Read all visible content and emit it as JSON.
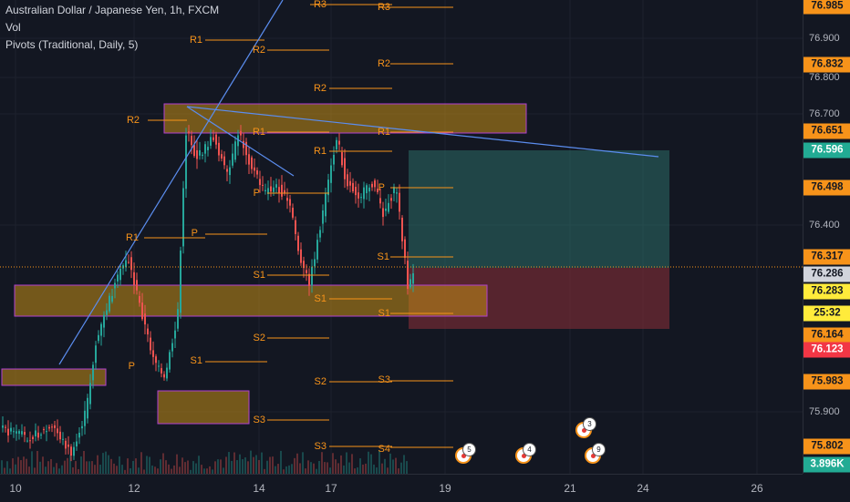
{
  "legend": {
    "symbol_line": "Australian Dollar / Japanese Yen, 1h, FXCM",
    "vol": "Vol",
    "pivots": "Pivots (Traditional, Daily, 5)"
  },
  "price_axis": {
    "labels": [
      "76.900",
      "76.800",
      "76.700",
      "76.400",
      "75.900"
    ],
    "tags": [
      {
        "text": "76.985",
        "bg": "#f7931a",
        "fg": "#131722"
      },
      {
        "text": "76.832",
        "bg": "#f7931a",
        "fg": "#131722"
      },
      {
        "text": "76.651",
        "bg": "#f7931a",
        "fg": "#131722"
      },
      {
        "text": "76.596",
        "bg": "#22ab94",
        "fg": "#ffffff"
      },
      {
        "text": "76.498",
        "bg": "#f7931a",
        "fg": "#131722"
      },
      {
        "text": "76.317",
        "bg": "#f7931a",
        "fg": "#131722"
      },
      {
        "text": "76.286",
        "bg": "#d1d4dc",
        "fg": "#131722"
      },
      {
        "text": "76.283",
        "bg": "#ffeb3b",
        "fg": "#131722"
      },
      {
        "text": "25:32",
        "bg": "#ffeb3b",
        "fg": "#131722"
      },
      {
        "text": "76.164",
        "bg": "#f7931a",
        "fg": "#131722"
      },
      {
        "text": "76.123",
        "bg": "#f23645",
        "fg": "#ffffff"
      },
      {
        "text": "75.983",
        "bg": "#f7931a",
        "fg": "#131722"
      },
      {
        "text": "75.802",
        "bg": "#f7931a",
        "fg": "#131722"
      },
      {
        "text": "3.896K",
        "bg": "#22ab94",
        "fg": "#ffffff"
      }
    ]
  },
  "time_axis": [
    "10",
    "12",
    "14",
    "17",
    "19",
    "21",
    "24",
    "26"
  ],
  "pivot_labels": [
    "R3",
    "R3",
    "R1",
    "R2",
    "R2",
    "R2",
    "R2",
    "R1",
    "R1",
    "R1",
    "R1",
    "P",
    "P",
    "P",
    "S1",
    "S1",
    "S1",
    "S1",
    "S2",
    "S2",
    "S1",
    "S3",
    "S3",
    "S3",
    "S4",
    "P"
  ],
  "events": [
    {
      "count": "5"
    },
    {
      "count": "4"
    },
    {
      "count": "3"
    },
    {
      "count": "9"
    }
  ],
  "colors": {
    "background": "#131722",
    "up": "#26a69a",
    "down": "#ef5350",
    "pivot": "#f7931a",
    "trendline": "#5b8def",
    "zone_fill": "#c58e16",
    "zone_border": "#b03fd0",
    "target_zone": "#2b6c66",
    "stop_zone": "#6e2a33"
  }
}
